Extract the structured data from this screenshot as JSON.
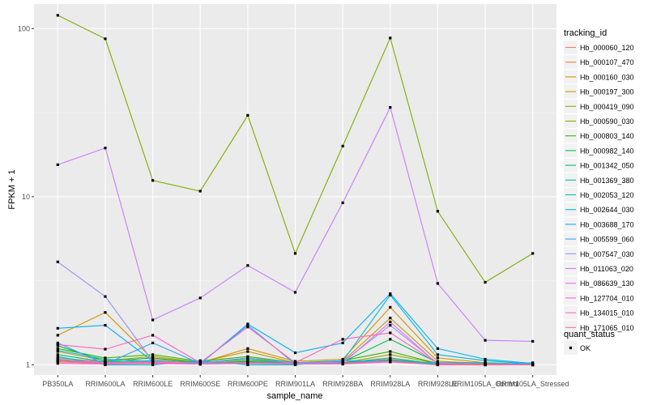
{
  "chart_data": {
    "type": "line",
    "title": "",
    "xlabel": "sample_name",
    "ylabel": "FPKM + 1",
    "yscale": "log10",
    "ylim": [
      0.87,
      140
    ],
    "yticks": [
      1,
      10,
      100
    ],
    "ytick_labels": [
      "1",
      "10",
      "100"
    ],
    "categories": [
      "PB350LA",
      "RRIM600LA",
      "RRIM600LE",
      "RRIM600SE",
      "RRIM600PE",
      "RRIM901LA",
      "RRIM928BA",
      "RRIM928LA",
      "RRIM928LE",
      "RRIM105LA_Control",
      "RRIM105LA_Stressed"
    ],
    "legend_title": "tracking_id",
    "series": [
      {
        "name": "Hb_000060_120",
        "color": "#F8766D",
        "values": [
          1.1,
          1.04,
          1.02,
          1.01,
          1.05,
          1.02,
          1.03,
          1.08,
          1.01,
          1.0,
          1.0
        ]
      },
      {
        "name": "Hb_000107_470",
        "color": "#EA8331",
        "values": [
          1.05,
          1.03,
          1.03,
          1.02,
          1.04,
          1.02,
          1.02,
          1.06,
          1.01,
          1.01,
          1.0
        ]
      },
      {
        "name": "Hb_000160_030",
        "color": "#D89000",
        "values": [
          1.5,
          2.05,
          1.08,
          1.03,
          1.25,
          1.05,
          1.08,
          2.2,
          1.1,
          1.03,
          1.01
        ]
      },
      {
        "name": "Hb_000197_300",
        "color": "#C09B00",
        "values": [
          1.2,
          1.06,
          1.12,
          1.04,
          1.2,
          1.03,
          1.05,
          1.9,
          1.05,
          1.02,
          1.01
        ]
      },
      {
        "name": "Hb_000419_090",
        "color": "#A3A500",
        "values": [
          1.06,
          1.02,
          1.05,
          1.02,
          1.06,
          1.02,
          1.03,
          1.15,
          1.02,
          1.01,
          1.0
        ]
      },
      {
        "name": "Hb_000590_030",
        "color": "#7CAE00",
        "values": [
          120,
          87,
          12.5,
          10.8,
          30.5,
          4.6,
          20,
          88,
          8.2,
          3.1,
          4.6
        ]
      },
      {
        "name": "Hb_000803_140",
        "color": "#39B600",
        "values": [
          1.25,
          1.1,
          1.15,
          1.05,
          1.12,
          1.03,
          1.06,
          1.2,
          1.02,
          1.01,
          1.0
        ]
      },
      {
        "name": "Hb_000982_140",
        "color": "#00BB4E",
        "values": [
          1.3,
          1.05,
          1.1,
          1.03,
          1.08,
          1.02,
          1.04,
          1.42,
          1.03,
          1.01,
          1.0
        ]
      },
      {
        "name": "Hb_001342_050",
        "color": "#00BF7D",
        "values": [
          1.15,
          1.04,
          1.06,
          1.02,
          1.05,
          1.02,
          1.03,
          1.1,
          1.01,
          1.01,
          1.0
        ]
      },
      {
        "name": "Hb_001369_380",
        "color": "#00C1A3",
        "values": [
          1.08,
          1.03,
          1.04,
          1.02,
          1.04,
          1.02,
          1.02,
          1.07,
          1.01,
          1.0,
          1.0
        ]
      },
      {
        "name": "Hb_002053_120",
        "color": "#00BFC4",
        "values": [
          1.12,
          1.0,
          1.0,
          1.06,
          1.0,
          1.0,
          1.06,
          1.05,
          1.03,
          1.03,
          1.0
        ]
      },
      {
        "name": "Hb_002644_030",
        "color": "#00BAE0",
        "values": [
          1.22,
          1.08,
          1.05,
          1.03,
          1.1,
          1.03,
          1.05,
          2.6,
          1.15,
          1.06,
          1.01
        ]
      },
      {
        "name": "Hb_003688_170",
        "color": "#00B0F6",
        "values": [
          1.65,
          1.72,
          1.05,
          1.01,
          1.75,
          1.18,
          1.35,
          2.65,
          1.25,
          1.08,
          1.02
        ]
      },
      {
        "name": "Hb_005599_060",
        "color": "#35A2FF",
        "values": [
          1.35,
          1.01,
          1.35,
          1.02,
          1.72,
          1.01,
          1.06,
          1.05,
          1.01,
          1.0,
          1.03
        ]
      },
      {
        "name": "Hb_007547_030",
        "color": "#9590FF",
        "values": [
          4.1,
          2.55,
          1.05,
          1.02,
          1.1,
          1.02,
          1.04,
          1.72,
          1.02,
          1.01,
          1.0
        ]
      },
      {
        "name": "Hb_011063_020",
        "color": "#C77CFF",
        "values": [
          15.5,
          19.5,
          1.85,
          2.5,
          3.9,
          2.7,
          9.2,
          34,
          3.05,
          1.4,
          1.38
        ]
      },
      {
        "name": "Hb_086639_130",
        "color": "#E76BF3",
        "values": [
          1.07,
          1.03,
          1.04,
          1.02,
          1.03,
          1.02,
          1.02,
          1.8,
          1.01,
          1.0,
          1.0
        ]
      },
      {
        "name": "Hb_127704_010",
        "color": "#FA62DB",
        "values": [
          1.02,
          1.01,
          1.02,
          1.01,
          1.02,
          1.01,
          1.01,
          1.04,
          1.0,
          1.0,
          1.0
        ]
      },
      {
        "name": "Hb_134015_010",
        "color": "#FF62BC",
        "values": [
          1.32,
          1.24,
          1.5,
          1.03,
          1.68,
          1.03,
          1.42,
          1.55,
          1.02,
          1.01,
          1.0
        ]
      },
      {
        "name": "Hb_171065_010",
        "color": "#FF6C91",
        "values": [
          1.04,
          1.02,
          1.03,
          1.01,
          1.03,
          1.01,
          1.02,
          1.05,
          1.0,
          1.0,
          1.0
        ]
      }
    ],
    "shape_legend": {
      "title": "quant_status",
      "entries": [
        "OK"
      ]
    },
    "panel_background": "#EBEBEB",
    "grid_major_color": "#FFFFFF",
    "point_color": "#000000"
  }
}
